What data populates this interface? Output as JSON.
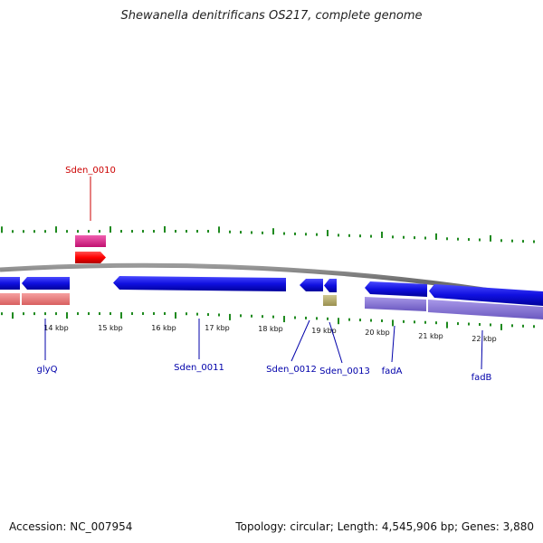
{
  "header": {
    "title": "Shewanella denitrificans OS217, complete genome"
  },
  "footer": {
    "accession": "Accession: NC_007954",
    "topology": "Topology: circular; Length: 4,545,906 bp; Genes: 3,880"
  },
  "scale": {
    "kbp_labels": [
      "14 kbp",
      "15 kbp",
      "16 kbp",
      "17 kbp",
      "18 kbp",
      "19 kbp",
      "20 kbp",
      "21 kbp",
      "22 kbp"
    ]
  },
  "genes_above": [
    {
      "label": "Sden_0010",
      "color": "#cc0000"
    }
  ],
  "genes_below": [
    {
      "label": "glyQ",
      "color": "#0000aa"
    },
    {
      "label": "Sden_0011",
      "color": "#0000aa"
    },
    {
      "label": "Sden_0012",
      "color": "#0000aa"
    },
    {
      "label": "Sden_0013",
      "color": "#0000aa"
    },
    {
      "label": "fadA",
      "color": "#0000aa"
    },
    {
      "label": "fadB",
      "color": "#0000aa"
    }
  ],
  "colors": {
    "backbone": "#7a7a7a",
    "tick": "#1f8a1f",
    "gene_forward": "#1010e0",
    "gene_reverse_strand": "#ff0000",
    "rna_pink": "#e0208c",
    "product_salmon": "#e88080",
    "product_purple": "#8070d0",
    "product_olive": "#b8b070"
  }
}
